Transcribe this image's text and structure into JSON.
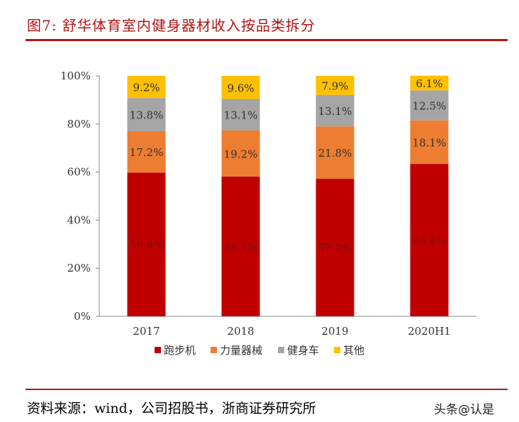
{
  "title": "图7:  舒华体育室内健身器材收入按品类拆分",
  "source": "资料来源：wind，公司招股书，浙商证券研究所",
  "watermark": "头条@认是",
  "chart_data": {
    "type": "bar",
    "stacked": true,
    "categories": [
      "2017",
      "2018",
      "2019",
      "2020H1"
    ],
    "series": [
      {
        "name": "跑步机",
        "values": [
          59.8,
          58.1,
          57.2,
          63.4
        ],
        "color": "#C00000"
      },
      {
        "name": "力量器械",
        "values": [
          17.2,
          19.2,
          21.8,
          18.1
        ],
        "color": "#ED7D31"
      },
      {
        "name": "健身车",
        "values": [
          13.8,
          13.1,
          13.1,
          12.5
        ],
        "color": "#A5A5A5"
      },
      {
        "name": "其他",
        "values": [
          9.2,
          9.6,
          7.9,
          6.1
        ],
        "color": "#FFC000"
      }
    ],
    "yticks": [
      "0%",
      "20%",
      "40%",
      "60%",
      "80%",
      "100%"
    ],
    "ylim": [
      0,
      100
    ],
    "legend": "bottom",
    "grid": false
  }
}
